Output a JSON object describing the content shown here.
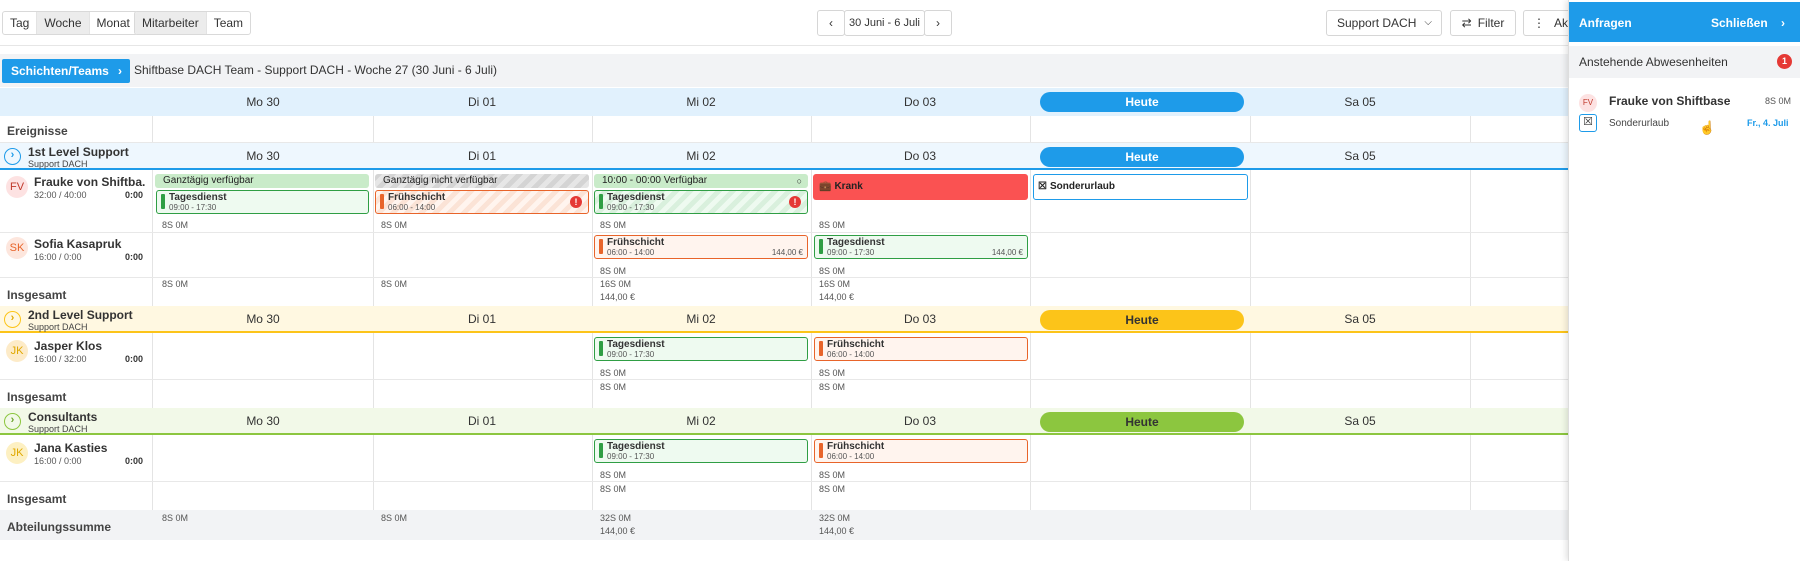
{
  "toolbar": {
    "view_segments": [
      "Tag",
      "Woche",
      "Monat"
    ],
    "group_segments": [
      "Mitarbeiter",
      "Team"
    ],
    "date_range": "30 Juni - 6 Juli",
    "team_select": "Support DACH",
    "filter_label": "Filter",
    "actions_label": "Akt"
  },
  "breadcrumb": {
    "button": "Schichten/Teams",
    "text": "Shiftbase DACH Team - Support DACH - Woche 27 (30 Juni - 6 Juli)"
  },
  "days": [
    "Mo 30",
    "Di 01",
    "Mi 02",
    "Do 03",
    "Heute",
    "Sa 05"
  ],
  "events_label": "Ereignisse",
  "total_label": "Insgesamt",
  "dept_total_label": "Abteilungssumme",
  "colors": {
    "accent": "#1e9be9",
    "green": "#2f9e44",
    "orange": "#e8642a",
    "red": "#fa5252",
    "yellow": "#fcc419",
    "lime": "#8cc63f"
  },
  "groups": [
    {
      "name": "1st Level Support",
      "sub": "Support DACH",
      "employees": [
        {
          "initials": "FV",
          "name": "Frauke von Shiftba...",
          "hours": "32:00 / 40:00",
          "right": "0:00"
        },
        {
          "initials": "SK",
          "name": "Sofia Kasapruk",
          "hours": "16:00 / 0:00",
          "right": "0:00"
        }
      ]
    },
    {
      "name": "2nd Level Support",
      "sub": "Support DACH",
      "employees": [
        {
          "initials": "JK",
          "name": "Jasper Klos",
          "hours": "16:00 / 32:00",
          "right": "0:00"
        }
      ]
    },
    {
      "name": "Consultants",
      "sub": "Support DACH",
      "employees": [
        {
          "initials": "JK",
          "name": "Jana Kasties",
          "hours": "16:00 / 0:00",
          "right": "0:00"
        }
      ]
    }
  ],
  "availability": {
    "a1": "Ganztägig verfügbar",
    "a2": "Ganztägig nicht verfügbar",
    "a3": "10:00 - 00:00 Verfügbar"
  },
  "shifts": {
    "tages": "Tagesdienst",
    "tages_time": "09:00 - 17:30",
    "frueh": "Frühschicht",
    "frueh_time": "06:00 - 14:00",
    "price": "144,00 €",
    "krank": "Krank",
    "sonder": "Sonderurlaub"
  },
  "stats": {
    "s85": "8S 0M",
    "s165": "16S 0M",
    "s325": "32S 0M",
    "price": "144,00 €"
  },
  "panel": {
    "title": "Anfragen",
    "close": "Schließen",
    "section": "Anstehende Abwesenheiten",
    "badge": "1",
    "req_initials": "FV",
    "req_name": "Frauke von Shiftbase",
    "req_hours": "8S 0M",
    "req_type": "Sonderurlaub",
    "req_date": "Fr., 4. Juli"
  }
}
